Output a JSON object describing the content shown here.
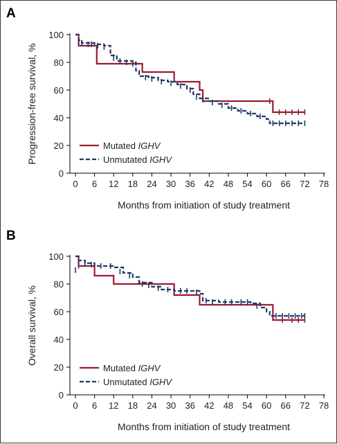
{
  "colors": {
    "mutated": "#9b1b30",
    "unmutated": "#1f3a68",
    "axis": "#000000"
  },
  "chart_data": [
    {
      "type": "line",
      "panel_letter": "A",
      "xlabel": "Months from initiation of study treatment",
      "ylabel": "Progression-free survival, %",
      "xlim": [
        0,
        78
      ],
      "ylim": [
        0,
        100
      ],
      "xticks": [
        0,
        6,
        12,
        18,
        24,
        30,
        36,
        42,
        48,
        54,
        60,
        66,
        72,
        78
      ],
      "yticks": [
        0,
        20,
        40,
        60,
        80,
        100
      ],
      "legend_position": "bottom-left",
      "grid": false,
      "series": [
        {
          "name": "Mutated",
          "name_italic": "IGHV",
          "style": "solid",
          "steps": [
            [
              0,
              100
            ],
            [
              1,
              92
            ],
            [
              6,
              92
            ],
            [
              6.7,
              79
            ],
            [
              21,
              79
            ],
            [
              21,
              73
            ],
            [
              31,
              73
            ],
            [
              31,
              66
            ],
            [
              39,
              66
            ],
            [
              39,
              60
            ],
            [
              40,
              60
            ],
            [
              40,
              52
            ],
            [
              62,
              52
            ],
            [
              62,
              44
            ],
            [
              72,
              44
            ]
          ],
          "censors": [
            [
              61,
              52
            ],
            [
              64,
              44
            ],
            [
              66,
              44
            ],
            [
              68,
              44
            ],
            [
              70,
              44
            ],
            [
              72,
              44
            ]
          ]
        },
        {
          "name": "Unmutated",
          "name_italic": "IGHV",
          "style": "dashed",
          "steps": [
            [
              0,
              100
            ],
            [
              1,
              96
            ],
            [
              2,
              94
            ],
            [
              6,
              93
            ],
            [
              9,
              92
            ],
            [
              11,
              85
            ],
            [
              13,
              81
            ],
            [
              18,
              80
            ],
            [
              19,
              74
            ],
            [
              20,
              70
            ],
            [
              23,
              69
            ],
            [
              26,
              67
            ],
            [
              29,
              66
            ],
            [
              32,
              64
            ],
            [
              35,
              61
            ],
            [
              37,
              57
            ],
            [
              39,
              54
            ],
            [
              42,
              52
            ],
            [
              45,
              50
            ],
            [
              48,
              47
            ],
            [
              51,
              45
            ],
            [
              54,
              43
            ],
            [
              57,
              41
            ],
            [
              60,
              39
            ],
            [
              61,
              36
            ],
            [
              72,
              36
            ]
          ],
          "censors": [
            [
              1,
              95
            ],
            [
              2,
              94
            ],
            [
              4,
              93
            ],
            [
              5,
              93
            ],
            [
              7,
              92
            ],
            [
              9,
              91
            ],
            [
              12,
              83
            ],
            [
              14,
              81
            ],
            [
              16,
              80
            ],
            [
              18,
              79
            ],
            [
              22,
              69
            ],
            [
              24,
              68
            ],
            [
              27,
              66
            ],
            [
              30,
              65
            ],
            [
              33,
              63
            ],
            [
              36,
              60
            ],
            [
              38,
              55
            ],
            [
              40,
              53
            ],
            [
              43,
              51
            ],
            [
              46,
              49
            ],
            [
              49,
              47
            ],
            [
              52,
              45
            ],
            [
              55,
              43
            ],
            [
              58,
              41
            ],
            [
              62,
              36
            ],
            [
              64,
              36
            ],
            [
              66,
              36
            ],
            [
              68,
              36
            ],
            [
              70,
              36
            ],
            [
              72,
              36
            ]
          ]
        }
      ]
    },
    {
      "type": "line",
      "panel_letter": "B",
      "xlabel": "Months from initiation of study treatment",
      "ylabel": "Overall survival, %",
      "xlim": [
        0,
        78
      ],
      "ylim": [
        0,
        100
      ],
      "xticks": [
        0,
        6,
        12,
        18,
        24,
        30,
        36,
        42,
        48,
        54,
        60,
        66,
        72,
        78
      ],
      "yticks": [
        0,
        20,
        40,
        60,
        80,
        100
      ],
      "legend_position": "bottom-left",
      "grid": false,
      "series": [
        {
          "name": "Mutated",
          "name_italic": "IGHV",
          "style": "solid",
          "steps": [
            [
              0,
              100
            ],
            [
              1,
              93
            ],
            [
              6,
              93
            ],
            [
              6,
              86
            ],
            [
              12,
              86
            ],
            [
              12,
              80
            ],
            [
              31,
              80
            ],
            [
              31,
              72
            ],
            [
              39,
              72
            ],
            [
              39,
              65
            ],
            [
              62,
              65
            ],
            [
              62,
              54
            ],
            [
              72,
              54
            ]
          ],
          "censors": [
            [
              1,
              93
            ],
            [
              65,
              54
            ],
            [
              68,
              54
            ],
            [
              70,
              54
            ],
            [
              72,
              54
            ]
          ]
        },
        {
          "name": "Unmutated",
          "name_italic": "IGHV",
          "style": "dashed",
          "steps": [
            [
              0,
              100
            ],
            [
              1,
              97
            ],
            [
              3,
              95
            ],
            [
              6,
              93
            ],
            [
              12,
              92
            ],
            [
              15,
              88
            ],
            [
              18,
              85
            ],
            [
              20,
              81
            ],
            [
              24,
              78
            ],
            [
              27,
              76
            ],
            [
              31,
              75
            ],
            [
              39,
              73
            ],
            [
              40,
              68
            ],
            [
              45,
              67
            ],
            [
              55,
              66
            ],
            [
              58,
              63
            ],
            [
              60,
              60
            ],
            [
              61,
              57
            ],
            [
              72,
              57
            ]
          ],
          "censors": [
            [
              0,
              90
            ],
            [
              1,
              96
            ],
            [
              3,
              95
            ],
            [
              5,
              94
            ],
            [
              8,
              93
            ],
            [
              11,
              93
            ],
            [
              14,
              89
            ],
            [
              17,
              86
            ],
            [
              21,
              80
            ],
            [
              23,
              79
            ],
            [
              26,
              77
            ],
            [
              29,
              76
            ],
            [
              33,
              75
            ],
            [
              35,
              75
            ],
            [
              38,
              74
            ],
            [
              41,
              68
            ],
            [
              43,
              67
            ],
            [
              47,
              67
            ],
            [
              49,
              67
            ],
            [
              52,
              67
            ],
            [
              54,
              67
            ],
            [
              57,
              64
            ],
            [
              63,
              57
            ],
            [
              65,
              57
            ],
            [
              67,
              57
            ],
            [
              69,
              57
            ],
            [
              71,
              57
            ],
            [
              72,
              57
            ]
          ]
        }
      ]
    }
  ]
}
